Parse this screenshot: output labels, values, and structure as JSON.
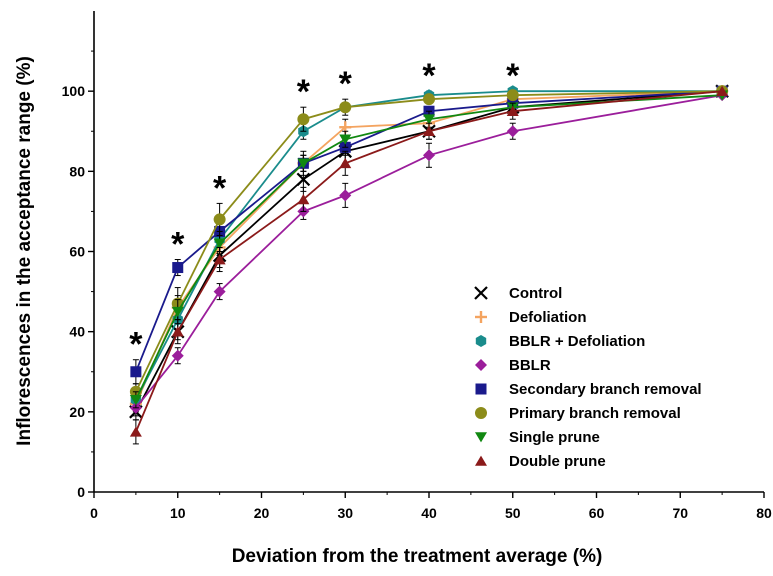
{
  "chart_data": {
    "type": "line",
    "title": "",
    "xlabel": "Deviation from the treatment average (%)",
    "ylabel": "Inflorescences in the acceptance range (%)",
    "xlim": [
      0,
      80
    ],
    "ylim": [
      0,
      120
    ],
    "x_ticks": [
      0,
      10,
      20,
      30,
      40,
      50,
      60,
      70,
      80
    ],
    "y_ticks": [
      0,
      20,
      40,
      60,
      80,
      100
    ],
    "grid": false,
    "legend_position": "bottom-right",
    "x": [
      5,
      10,
      15,
      25,
      30,
      40,
      50,
      75
    ],
    "significance_marker": "*",
    "significant_x": [
      5,
      10,
      15,
      25,
      30,
      40,
      50
    ],
    "series": [
      {
        "name": "Control",
        "marker": "x",
        "color": "#000000",
        "values": [
          20,
          40,
          59,
          78,
          85,
          90,
          96,
          100
        ],
        "errors": [
          2,
          2,
          3,
          3,
          3,
          2,
          1,
          0
        ]
      },
      {
        "name": "Defoliation",
        "marker": "plus",
        "color": "#f4a460",
        "values": [
          22,
          46,
          61,
          82,
          91,
          92,
          98,
          100
        ],
        "errors": [
          2,
          3,
          3,
          2,
          2,
          2,
          1,
          0
        ]
      },
      {
        "name": "BBLR + Defoliation",
        "marker": "hexagon",
        "color": "#1a8c8c",
        "values": [
          23,
          43,
          63,
          90,
          96,
          99,
          100,
          100
        ],
        "errors": [
          2,
          3,
          3,
          2,
          1,
          1,
          0,
          0
        ]
      },
      {
        "name": "BBLR",
        "marker": "diamond",
        "color": "#9b1e9b",
        "values": [
          21,
          34,
          50,
          70,
          74,
          84,
          90,
          99
        ],
        "errors": [
          2,
          2,
          2,
          2,
          3,
          3,
          2,
          0
        ]
      },
      {
        "name": "Secondary branch removal",
        "marker": "square",
        "color": "#1a1a8c",
        "values": [
          30,
          56,
          65,
          82,
          86,
          95,
          97,
          100
        ],
        "errors": [
          3,
          2,
          2,
          2,
          2,
          1,
          1,
          0
        ]
      },
      {
        "name": "Primary branch removal",
        "marker": "circle",
        "color": "#8c8c1a",
        "values": [
          25,
          47,
          68,
          93,
          96,
          98,
          99,
          100
        ],
        "errors": [
          2,
          4,
          4,
          3,
          2,
          1,
          1,
          0
        ]
      },
      {
        "name": "Single prune",
        "marker": "triangle-down",
        "color": "#118811",
        "values": [
          23,
          45,
          62,
          82,
          88,
          93,
          96,
          99
        ],
        "errors": [
          2,
          3,
          3,
          3,
          2,
          2,
          1,
          0
        ]
      },
      {
        "name": "Double prune",
        "marker": "triangle-up",
        "color": "#8b1a1a",
        "values": [
          15,
          40,
          58,
          73,
          82,
          90,
          95,
          100
        ],
        "errors": [
          3,
          3,
          3,
          3,
          3,
          2,
          2,
          0
        ]
      }
    ]
  }
}
